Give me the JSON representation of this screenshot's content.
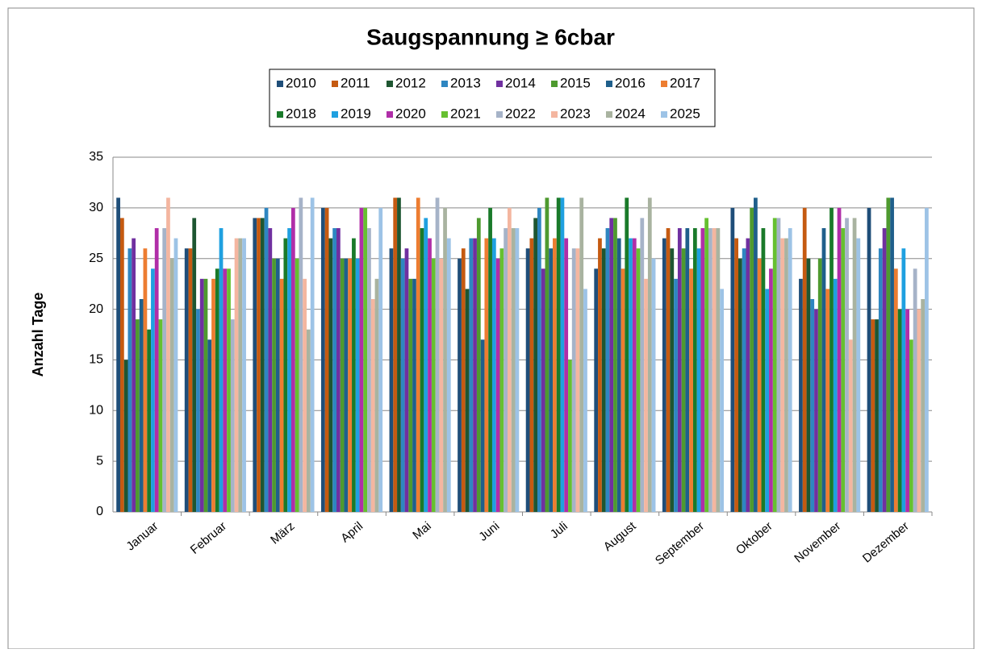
{
  "chart_data": {
    "type": "bar",
    "title": "Saugspannung ≥ 6cbar",
    "y_label": "Anzahl Tage",
    "categories": [
      "Januar",
      "Februar",
      "März",
      "April",
      "Mai",
      "Juni",
      "Juli",
      "August",
      "September",
      "Oktober",
      "November",
      "Dezember"
    ],
    "ylim": [
      0,
      35
    ],
    "yticks": [
      0,
      5,
      10,
      15,
      20,
      25,
      30,
      35
    ],
    "grid": true,
    "legend": "top",
    "series": [
      {
        "name": "2010",
        "color": "#1f4e79",
        "values": [
          31,
          26,
          29,
          30,
          26,
          25,
          26,
          24,
          27,
          30,
          23,
          30
        ]
      },
      {
        "name": "2011",
        "color": "#c55a11",
        "values": [
          29,
          26,
          29,
          30,
          31,
          26,
          27,
          27,
          28,
          27,
          30,
          19
        ]
      },
      {
        "name": "2012",
        "color": "#1e5631",
        "values": [
          15,
          29,
          29,
          27,
          31,
          22,
          29,
          26,
          26,
          25,
          25,
          19
        ]
      },
      {
        "name": "2013",
        "color": "#2e86c1",
        "values": [
          26,
          20,
          30,
          28,
          25,
          27,
          30,
          28,
          23,
          26,
          21,
          26
        ]
      },
      {
        "name": "2014",
        "color": "#7030a0",
        "values": [
          27,
          23,
          28,
          28,
          26,
          27,
          24,
          29,
          28,
          27,
          20,
          28
        ]
      },
      {
        "name": "2015",
        "color": "#4e9a2f",
        "values": [
          19,
          23,
          25,
          25,
          23,
          29,
          31,
          29,
          26,
          30,
          25,
          31
        ]
      },
      {
        "name": "2016",
        "color": "#1f5f8b",
        "values": [
          21,
          17,
          25,
          25,
          23,
          17,
          26,
          27,
          28,
          31,
          28,
          31
        ]
      },
      {
        "name": "2017",
        "color": "#ed7d31",
        "values": [
          26,
          23,
          23,
          25,
          31,
          27,
          27,
          24,
          24,
          25,
          22,
          24
        ]
      },
      {
        "name": "2018",
        "color": "#1a7a2a",
        "values": [
          18,
          24,
          27,
          27,
          28,
          30,
          31,
          31,
          28,
          28,
          30,
          20
        ]
      },
      {
        "name": "2019",
        "color": "#1fa0e0",
        "values": [
          24,
          28,
          28,
          25,
          29,
          27,
          31,
          27,
          26,
          22,
          23,
          26
        ]
      },
      {
        "name": "2020",
        "color": "#b02ea8",
        "values": [
          28,
          24,
          30,
          30,
          27,
          25,
          27,
          27,
          28,
          24,
          30,
          20
        ]
      },
      {
        "name": "2021",
        "color": "#66c030",
        "values": [
          19,
          24,
          25,
          30,
          25,
          26,
          15,
          26,
          29,
          29,
          28,
          17
        ]
      },
      {
        "name": "2022",
        "color": "#a6b3c8",
        "values": [
          28,
          19,
          31,
          28,
          31,
          28,
          26,
          29,
          28,
          29,
          29,
          24
        ]
      },
      {
        "name": "2023",
        "color": "#f4b6a0",
        "values": [
          31,
          27,
          23,
          21,
          25,
          30,
          26,
          23,
          28,
          27,
          17,
          20
        ]
      },
      {
        "name": "2024",
        "color": "#a9b3a0",
        "values": [
          25,
          27,
          18,
          23,
          30,
          28,
          31,
          31,
          28,
          27,
          29,
          21
        ]
      },
      {
        "name": "2025",
        "color": "#9dc3e6",
        "values": [
          27,
          27,
          31,
          30,
          27,
          28,
          22,
          25,
          22,
          28,
          27,
          30
        ]
      }
    ]
  }
}
